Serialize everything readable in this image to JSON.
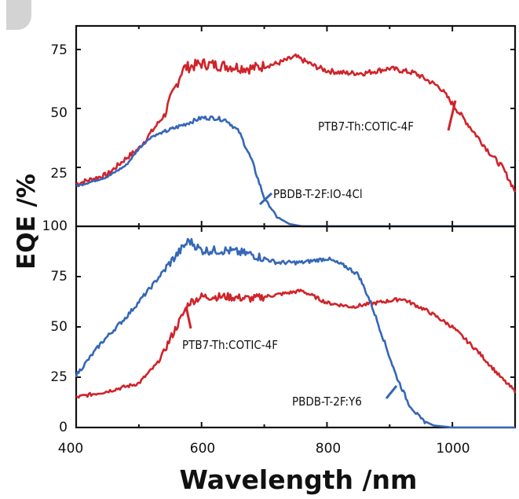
{
  "chart_data": [
    {
      "type": "line",
      "panel": "top",
      "xlim": [
        400,
        1100
      ],
      "ylim": [
        0,
        85
      ],
      "yticks": [
        "25",
        "50",
        "75"
      ],
      "series": [
        {
          "name": "PTB7-Th:COTIC-4F",
          "color": "#d0232a",
          "points": [
            [
              400,
              18
            ],
            [
              450,
              22
            ],
            [
              480,
              29
            ],
            [
              500,
              33
            ],
            [
              520,
              40
            ],
            [
              540,
              47
            ],
            [
              560,
              60
            ],
            [
              570,
              67
            ],
            [
              600,
              69
            ],
            [
              640,
              68
            ],
            [
              680,
              67
            ],
            [
              720,
              69
            ],
            [
              750,
              72
            ],
            [
              780,
              68
            ],
            [
              800,
              66
            ],
            [
              830,
              65
            ],
            [
              860,
              65
            ],
            [
              900,
              67
            ],
            [
              940,
              65
            ],
            [
              980,
              59
            ],
            [
              1000,
              52
            ],
            [
              1020,
              45
            ],
            [
              1040,
              38
            ],
            [
              1060,
              31
            ],
            [
              1080,
              25
            ],
            [
              1100,
              15
            ]
          ]
        },
        {
          "name": "PBDB-T-2F:IO-4Cl",
          "color": "#3567b7",
          "points": [
            [
              400,
              17
            ],
            [
              450,
              21
            ],
            [
              480,
              26
            ],
            [
              500,
              33
            ],
            [
              520,
              38
            ],
            [
              540,
              40
            ],
            [
              570,
              43
            ],
            [
              600,
              46
            ],
            [
              620,
              46
            ],
            [
              640,
              45
            ],
            [
              660,
              40
            ],
            [
              680,
              28
            ],
            [
              700,
              12
            ],
            [
              720,
              4
            ],
            [
              740,
              1
            ],
            [
              760,
              0
            ],
            [
              800,
              0
            ]
          ]
        }
      ],
      "annotations": [
        {
          "text": "PTB7-Th:COTIC-4F",
          "series": 0
        },
        {
          "text": "PBDB-T-2F:IO-4Cl",
          "series": 1
        }
      ]
    },
    {
      "type": "line",
      "panel": "bottom",
      "xlim": [
        400,
        1100
      ],
      "ylim": [
        0,
        100
      ],
      "yticks": [
        "0",
        "25",
        "50",
        "75",
        "100"
      ],
      "series": [
        {
          "name": "PTB7-Th:COTIC-4F",
          "color": "#d0232a",
          "points": [
            [
              400,
              15
            ],
            [
              450,
              18
            ],
            [
              500,
              22
            ],
            [
              530,
              32
            ],
            [
              560,
              50
            ],
            [
              580,
              62
            ],
            [
              600,
              65
            ],
            [
              640,
              65
            ],
            [
              680,
              64
            ],
            [
              720,
              66
            ],
            [
              760,
              68
            ],
            [
              800,
              62
            ],
            [
              840,
              60
            ],
            [
              880,
              62
            ],
            [
              920,
              64
            ],
            [
              960,
              58
            ],
            [
              1000,
              50
            ],
            [
              1040,
              38
            ],
            [
              1080,
              24
            ],
            [
              1100,
              18
            ]
          ]
        },
        {
          "name": "PBDB-T-2F:Y6",
          "color": "#3567b7",
          "points": [
            [
              400,
              26
            ],
            [
              440,
              42
            ],
            [
              480,
              55
            ],
            [
              520,
              70
            ],
            [
              550,
              82
            ],
            [
              580,
              93
            ],
            [
              600,
              88
            ],
            [
              640,
              88
            ],
            [
              680,
              86
            ],
            [
              720,
              82
            ],
            [
              760,
              82
            ],
            [
              800,
              84
            ],
            [
              830,
              80
            ],
            [
              850,
              76
            ],
            [
              870,
              62
            ],
            [
              890,
              44
            ],
            [
              910,
              26
            ],
            [
              930,
              12
            ],
            [
              950,
              4
            ],
            [
              970,
              1
            ],
            [
              1000,
              0
            ],
            [
              1100,
              0
            ]
          ]
        }
      ],
      "annotations": [
        {
          "text": "PTB7-Th:COTIC-4F",
          "series": 0
        },
        {
          "text": "PBDB-T-2F:Y6",
          "series": 1
        }
      ]
    }
  ],
  "xticks": [
    "400",
    "600",
    "800",
    "1000"
  ],
  "xlabel": "Wavelength /nm",
  "ylabel": "EQE /%"
}
